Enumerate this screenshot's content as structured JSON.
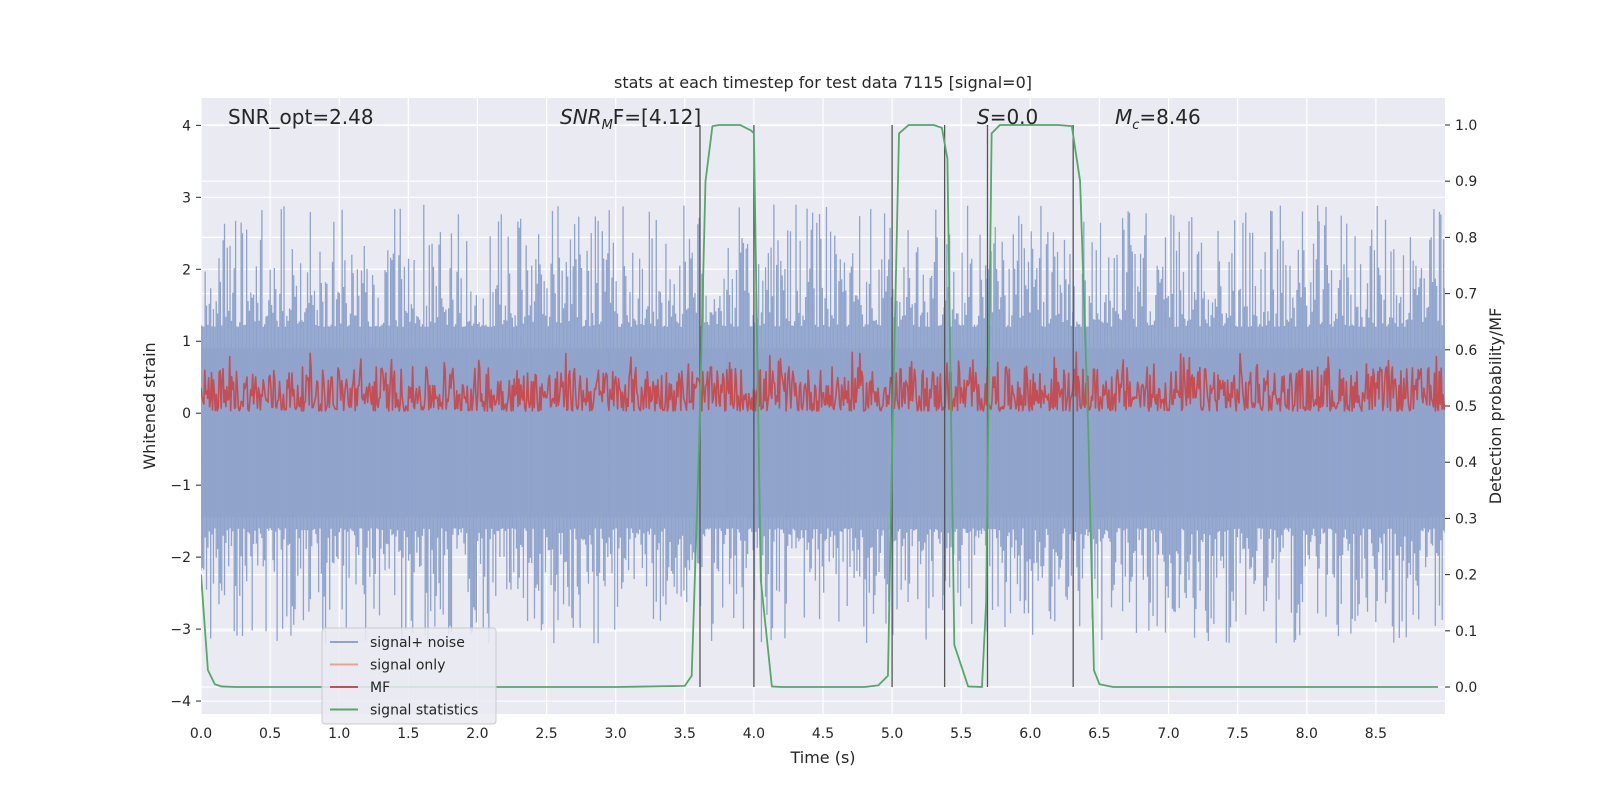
{
  "chart_data": {
    "type": "line",
    "title": "stats at each timestep for test data 7115 [signal=0]",
    "xlabel": "Time (s)",
    "ylabel_left": "Whitened strain",
    "ylabel_right": "Detection probability/MF",
    "xlim": [
      0.0,
      9.0
    ],
    "ylim_left": [
      -4.18,
      4.38
    ],
    "ylim_right": [
      -0.048,
      1.048
    ],
    "x_ticks": [
      "0.0",
      "0.5",
      "1.0",
      "1.5",
      "2.0",
      "2.5",
      "3.0",
      "3.5",
      "4.0",
      "4.5",
      "5.0",
      "5.5",
      "6.0",
      "6.5",
      "7.0",
      "7.5",
      "8.0",
      "8.5"
    ],
    "left_ticks": [
      "4",
      "3",
      "2",
      "1",
      "0",
      "−1",
      "−2",
      "−3",
      "−4"
    ],
    "right_ticks": [
      "1.0",
      "0.9",
      "0.8",
      "0.7",
      "0.6",
      "0.5",
      "0.4",
      "0.3",
      "0.2",
      "0.1",
      "0.0"
    ],
    "annotations": {
      "snr_opt": "SNR_opt=2.48",
      "snr_mf_main": "SNR",
      "snr_mf_sub": "M",
      "snr_mf_rest": "F=[4.12]",
      "s_italic": "S",
      "s_rest": "=0.0",
      "mc_main": "M",
      "mc_sub": "c",
      "mc_rest": "=8.46"
    },
    "legend": [
      {
        "label": "signal+ noise",
        "color": "#8fa3cc"
      },
      {
        "label": "signal only",
        "color": "#e8a58c"
      },
      {
        "label": "MF",
        "color": "#c44e52"
      },
      {
        "label": "signal statistics",
        "color": "#55a868"
      }
    ],
    "series": [
      {
        "name": "signal+ noise",
        "axis": "left",
        "color": "#8fa3cc",
        "band_max": 2.9,
        "band_min": -3.2,
        "dense_range": [
          -1.45,
          0.9
        ]
      },
      {
        "name": "MF",
        "axis": "left",
        "color": "#c44e52",
        "band_max": 0.85,
        "band_min": 0.03
      },
      {
        "name": "signal statistics",
        "axis": "right",
        "color": "#55a868",
        "x": [
          0.0,
          0.05,
          0.1,
          0.15,
          0.25,
          0.5,
          1.0,
          2.0,
          3.0,
          3.5,
          3.55,
          3.6,
          3.65,
          3.7,
          3.75,
          3.9,
          3.98,
          4.0,
          4.05,
          4.13,
          4.2,
          4.8,
          4.9,
          4.97,
          5.0,
          5.05,
          5.12,
          5.3,
          5.36,
          5.4,
          5.45,
          5.55,
          5.65,
          5.68,
          5.72,
          5.78,
          5.85,
          6.2,
          6.3,
          6.36,
          6.42,
          6.46,
          6.5,
          6.6,
          7.0,
          8.0,
          8.95
        ],
        "y": [
          0.2,
          0.03,
          0.005,
          0.001,
          0.0,
          0.0,
          0.0,
          0.0,
          0.0,
          0.002,
          0.02,
          0.4,
          0.9,
          0.998,
          1.0,
          1.0,
          0.99,
          0.985,
          0.19,
          0.001,
          0.0,
          0.0,
          0.003,
          0.02,
          0.42,
          0.985,
          1.0,
          1.0,
          0.995,
          0.94,
          0.075,
          0.001,
          0.0,
          0.15,
          0.985,
          1.0,
          1.0,
          1.0,
          0.998,
          0.9,
          0.45,
          0.03,
          0.005,
          0.0,
          0.0,
          0.0,
          0.0
        ]
      }
    ],
    "vlines_x": [
      3.61,
      4.0,
      5.0,
      5.38,
      5.69,
      6.31
    ]
  }
}
